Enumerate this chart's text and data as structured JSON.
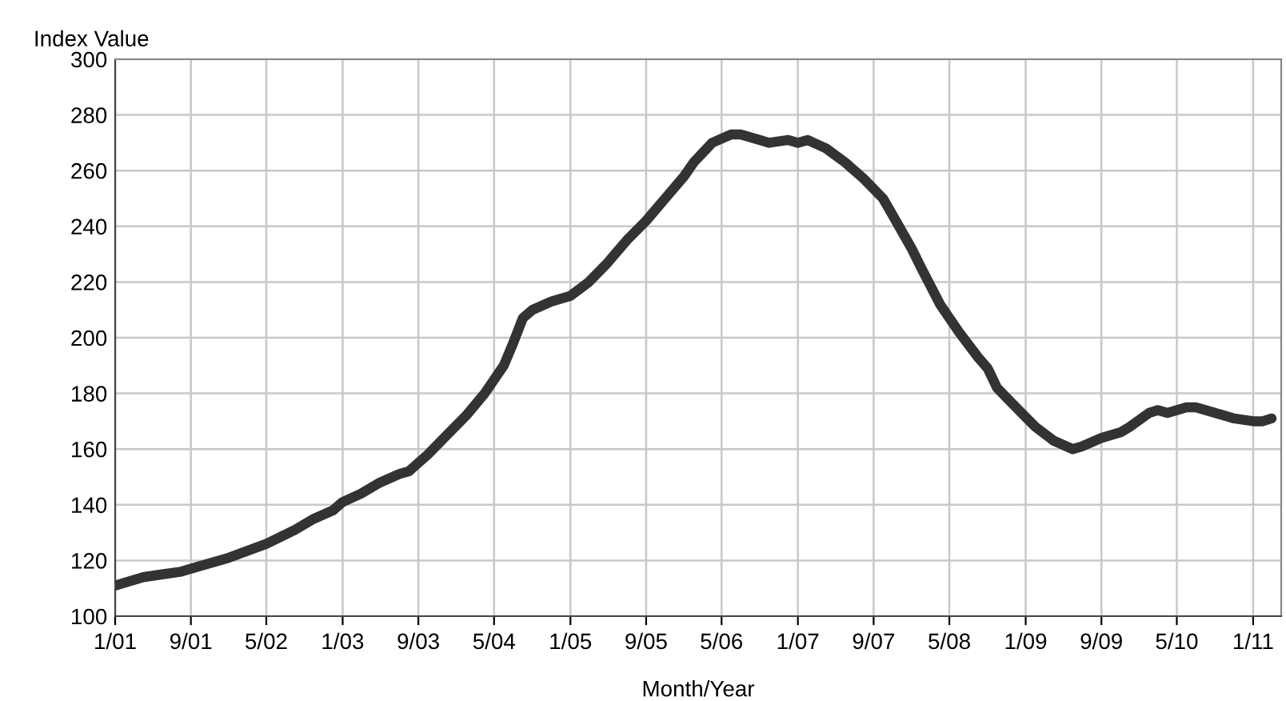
{
  "chart_data": {
    "type": "line",
    "ylabel": "Index Value",
    "xlabel": "Month/Year",
    "x": [
      "2001-01",
      "2001-04",
      "2001-06",
      "2001-08",
      "2001-10",
      "2002-01",
      "2002-05",
      "2002-08",
      "2002-10",
      "2002-12",
      "2003-01",
      "2003-03",
      "2003-05",
      "2003-07",
      "2003-08",
      "2003-10",
      "2003-12",
      "2004-02",
      "2004-04",
      "2004-06",
      "2004-07",
      "2004-08",
      "2004-09",
      "2004-11",
      "2005-01",
      "2005-03",
      "2005-05",
      "2005-07",
      "2005-09",
      "2005-11",
      "2006-01",
      "2006-02",
      "2006-04",
      "2006-06",
      "2006-07",
      "2006-09",
      "2006-10",
      "2006-12",
      "2007-01",
      "2007-02",
      "2007-04",
      "2007-06",
      "2007-08",
      "2007-10",
      "2007-11",
      "2008-01",
      "2008-02",
      "2008-04",
      "2008-06",
      "2008-08",
      "2008-09",
      "2008-10",
      "2008-12",
      "2009-02",
      "2009-04",
      "2009-06",
      "2009-07",
      "2009-09",
      "2009-11",
      "2009-12",
      "2010-02",
      "2010-03",
      "2010-04",
      "2010-06",
      "2010-07",
      "2010-09",
      "2010-11",
      "2011-01",
      "2011-02",
      "2011-03"
    ],
    "series": [
      {
        "color": "#333333",
        "values": [
          111,
          114,
          115,
          116,
          118,
          121,
          126,
          131,
          135,
          138,
          141,
          144,
          148,
          151,
          152,
          158,
          165,
          172,
          180,
          190,
          198,
          207,
          210,
          213,
          215,
          220,
          227,
          235,
          242,
          250,
          258,
          263,
          270,
          273,
          273,
          271,
          270,
          271,
          270,
          271,
          268,
          263,
          257,
          250,
          244,
          232,
          225,
          212,
          202,
          193,
          189,
          182,
          175,
          168,
          163,
          160,
          161,
          164,
          166,
          168,
          173,
          174,
          173,
          175,
          175,
          173,
          171,
          170,
          170,
          171
        ]
      }
    ],
    "xlim": [
      "2001-01",
      "2011-04"
    ],
    "xticks": [
      {
        "value": "2001-01",
        "label": "1/01"
      },
      {
        "value": "2001-09",
        "label": "9/01"
      },
      {
        "value": "2002-05",
        "label": "5/02"
      },
      {
        "value": "2003-01",
        "label": "1/03"
      },
      {
        "value": "2003-09",
        "label": "9/03"
      },
      {
        "value": "2004-05",
        "label": "5/04"
      },
      {
        "value": "2005-01",
        "label": "1/05"
      },
      {
        "value": "2005-09",
        "label": "9/05"
      },
      {
        "value": "2006-05",
        "label": "5/06"
      },
      {
        "value": "2007-01",
        "label": "1/07"
      },
      {
        "value": "2007-09",
        "label": "9/07"
      },
      {
        "value": "2008-05",
        "label": "5/08"
      },
      {
        "value": "2009-01",
        "label": "1/09"
      },
      {
        "value": "2009-09",
        "label": "9/09"
      },
      {
        "value": "2010-05",
        "label": "5/10"
      },
      {
        "value": "2011-01",
        "label": "1/11"
      }
    ],
    "ylim": [
      100,
      300
    ],
    "yticks": [
      100,
      120,
      140,
      160,
      180,
      200,
      220,
      240,
      260,
      280,
      300
    ],
    "grid": true,
    "line_style": "solid"
  }
}
